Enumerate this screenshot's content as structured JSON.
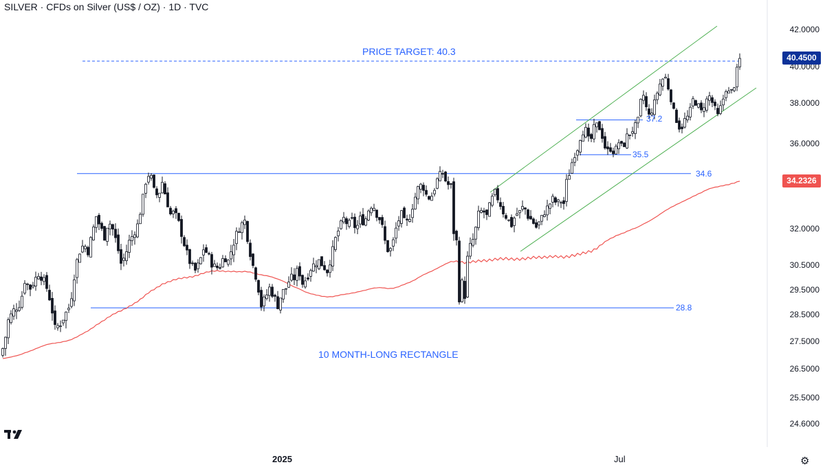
{
  "header": {
    "title": "SILVER · CFDs on Silver (US$ / OZ) · 1D · TVC"
  },
  "chart_data": {
    "type": "candlestick",
    "title": "SILVER · CFDs on Silver (US$ / OZ) · 1D · TVC",
    "y_axis_labels": [
      "42.0000",
      "40.0000",
      "38.0000",
      "36.0000",
      "32.0000",
      "30.5000",
      "29.5000",
      "28.5000",
      "27.5000",
      "26.5000",
      "25.5000",
      "24.6000"
    ],
    "x_axis_labels": [
      "2025",
      "Jul"
    ],
    "last_price": 40.45,
    "last_price_label": "40.4500",
    "moving_average": {
      "value": 34.2326,
      "label": "34.2326",
      "color": "#ef5350"
    },
    "colors": {
      "up_body": "#ffffff",
      "down_body": "#131722",
      "wick": "#131722",
      "level": "#2962ff",
      "channel": "#4caf50",
      "badge": "#0c3299"
    },
    "levels": [
      {
        "value": 40.3,
        "label": "PRICE TARGET: 40.3",
        "style": "dashed"
      },
      {
        "value": 34.6,
        "label": "34.6"
      },
      {
        "value": 28.8,
        "label": "28.8"
      },
      {
        "value": 37.2,
        "label": "37.2"
      },
      {
        "value": 35.5,
        "label": "35.5"
      }
    ],
    "annotations": [
      "10 MONTH-LONG RECTANGLE"
    ],
    "price_path": [
      [
        0,
        27.0
      ],
      [
        6,
        27.4
      ],
      [
        12,
        28.3
      ],
      [
        20,
        28.7
      ],
      [
        30,
        29.0
      ],
      [
        36,
        29.9
      ],
      [
        44,
        29.6
      ],
      [
        50,
        29.9
      ],
      [
        56,
        30.2
      ],
      [
        62,
        30.0
      ],
      [
        68,
        29.6
      ],
      [
        74,
        29.0
      ],
      [
        80,
        28.0
      ],
      [
        88,
        28.2
      ],
      [
        96,
        28.6
      ],
      [
        102,
        28.9
      ],
      [
        108,
        30.1
      ],
      [
        114,
        31.0
      ],
      [
        122,
        31.4
      ],
      [
        128,
        31.1
      ],
      [
        134,
        31.8
      ],
      [
        140,
        32.6
      ],
      [
        146,
        32.1
      ],
      [
        152,
        31.7
      ],
      [
        158,
        32.4
      ],
      [
        164,
        32.0
      ],
      [
        170,
        31.4
      ],
      [
        176,
        30.6
      ],
      [
        182,
        30.9
      ],
      [
        188,
        31.5
      ],
      [
        194,
        31.8
      ],
      [
        200,
        32.2
      ],
      [
        206,
        33.1
      ],
      [
        212,
        34.2
      ],
      [
        218,
        34.7
      ],
      [
        224,
        33.8
      ],
      [
        230,
        33.5
      ],
      [
        236,
        34.2
      ],
      [
        242,
        33.4
      ],
      [
        248,
        32.7
      ],
      [
        254,
        32.8
      ],
      [
        260,
        32.3
      ],
      [
        266,
        31.6
      ],
      [
        272,
        31.0
      ],
      [
        278,
        30.5
      ],
      [
        284,
        30.3
      ],
      [
        290,
        30.6
      ],
      [
        296,
        31.2
      ],
      [
        302,
        31.0
      ],
      [
        308,
        30.6
      ],
      [
        314,
        30.4
      ],
      [
        320,
        30.5
      ],
      [
        326,
        30.9
      ],
      [
        332,
        30.7
      ],
      [
        338,
        31.3
      ],
      [
        344,
        31.8
      ],
      [
        350,
        32.2
      ],
      [
        356,
        32.4
      ],
      [
        362,
        31.3
      ],
      [
        368,
        30.5
      ],
      [
        374,
        29.9
      ],
      [
        380,
        28.9
      ],
      [
        386,
        29.2
      ],
      [
        392,
        29.6
      ],
      [
        398,
        29.3
      ],
      [
        404,
        28.9
      ],
      [
        410,
        29.4
      ],
      [
        416,
        29.6
      ],
      [
        422,
        30.0
      ],
      [
        428,
        30.0
      ],
      [
        434,
        30.4
      ],
      [
        440,
        29.8
      ],
      [
        446,
        30.0
      ],
      [
        452,
        30.4
      ],
      [
        458,
        30.6
      ],
      [
        464,
        30.7
      ],
      [
        470,
        30.5
      ],
      [
        476,
        30.3
      ],
      [
        482,
        30.9
      ],
      [
        488,
        31.6
      ],
      [
        494,
        32.1
      ],
      [
        500,
        32.5
      ],
      [
        506,
        32.2
      ],
      [
        512,
        32.4
      ],
      [
        518,
        32.0
      ],
      [
        524,
        32.5
      ],
      [
        530,
        32.3
      ],
      [
        536,
        32.9
      ],
      [
        542,
        33.2
      ],
      [
        548,
        32.7
      ],
      [
        554,
        32.4
      ],
      [
        560,
        31.5
      ],
      [
        566,
        31.0
      ],
      [
        572,
        31.5
      ],
      [
        578,
        32.3
      ],
      [
        584,
        32.7
      ],
      [
        590,
        32.2
      ],
      [
        596,
        32.6
      ],
      [
        602,
        33.3
      ],
      [
        608,
        33.9
      ],
      [
        614,
        34.1
      ],
      [
        620,
        33.6
      ],
      [
        626,
        33.4
      ],
      [
        632,
        33.9
      ],
      [
        638,
        34.5
      ],
      [
        644,
        34.6
      ],
      [
        650,
        34.1
      ],
      [
        656,
        34.0
      ],
      [
        660,
        31.9
      ],
      [
        664,
        31.5
      ],
      [
        668,
        29.2
      ],
      [
        672,
        29.8
      ],
      [
        676,
        29.3
      ],
      [
        680,
        30.8
      ],
      [
        684,
        31.3
      ],
      [
        690,
        31.7
      ],
      [
        696,
        32.7
      ],
      [
        702,
        32.9
      ],
      [
        708,
        32.6
      ],
      [
        714,
        33.3
      ],
      [
        720,
        33.7
      ],
      [
        726,
        33.3
      ],
      [
        732,
        32.8
      ],
      [
        738,
        32.5
      ],
      [
        744,
        32.2
      ],
      [
        750,
        32.7
      ],
      [
        756,
        32.8
      ],
      [
        762,
        33.1
      ],
      [
        768,
        32.6
      ],
      [
        774,
        32.4
      ],
      [
        780,
        32.1
      ],
      [
        786,
        32.4
      ],
      [
        792,
        32.8
      ],
      [
        798,
        33.1
      ],
      [
        804,
        33.4
      ],
      [
        810,
        33.2
      ],
      [
        816,
        33.3
      ],
      [
        820,
        33.2
      ],
      [
        824,
        34.2
      ],
      [
        828,
        34.6
      ],
      [
        834,
        35.4
      ],
      [
        840,
        35.8
      ],
      [
        846,
        36.6
      ],
      [
        852,
        36.7
      ],
      [
        858,
        36.0
      ],
      [
        864,
        36.8
      ],
      [
        870,
        37.0
      ],
      [
        876,
        36.4
      ],
      [
        882,
        35.6
      ],
      [
        888,
        35.8
      ],
      [
        894,
        35.6
      ],
      [
        900,
        36.1
      ],
      [
        906,
        35.8
      ],
      [
        912,
        36.4
      ],
      [
        918,
        36.6
      ],
      [
        924,
        36.9
      ],
      [
        930,
        37.3
      ],
      [
        934,
        38.9
      ],
      [
        938,
        38.0
      ],
      [
        944,
        37.4
      ],
      [
        950,
        37.8
      ],
      [
        956,
        38.6
      ],
      [
        962,
        39.3
      ],
      [
        968,
        39.4
      ],
      [
        974,
        38.6
      ],
      [
        980,
        37.6
      ],
      [
        986,
        37.0
      ],
      [
        990,
        36.7
      ],
      [
        996,
        37.2
      ],
      [
        1002,
        37.4
      ],
      [
        1008,
        38.2
      ],
      [
        1014,
        38.0
      ],
      [
        1020,
        37.6
      ],
      [
        1026,
        38.1
      ],
      [
        1032,
        38.4
      ],
      [
        1038,
        37.9
      ],
      [
        1044,
        37.4
      ],
      [
        1050,
        38.0
      ],
      [
        1056,
        38.8
      ],
      [
        1062,
        38.5
      ],
      [
        1068,
        39.0
      ],
      [
        1072,
        39.8
      ],
      [
        1076,
        40.45
      ]
    ]
  }
}
